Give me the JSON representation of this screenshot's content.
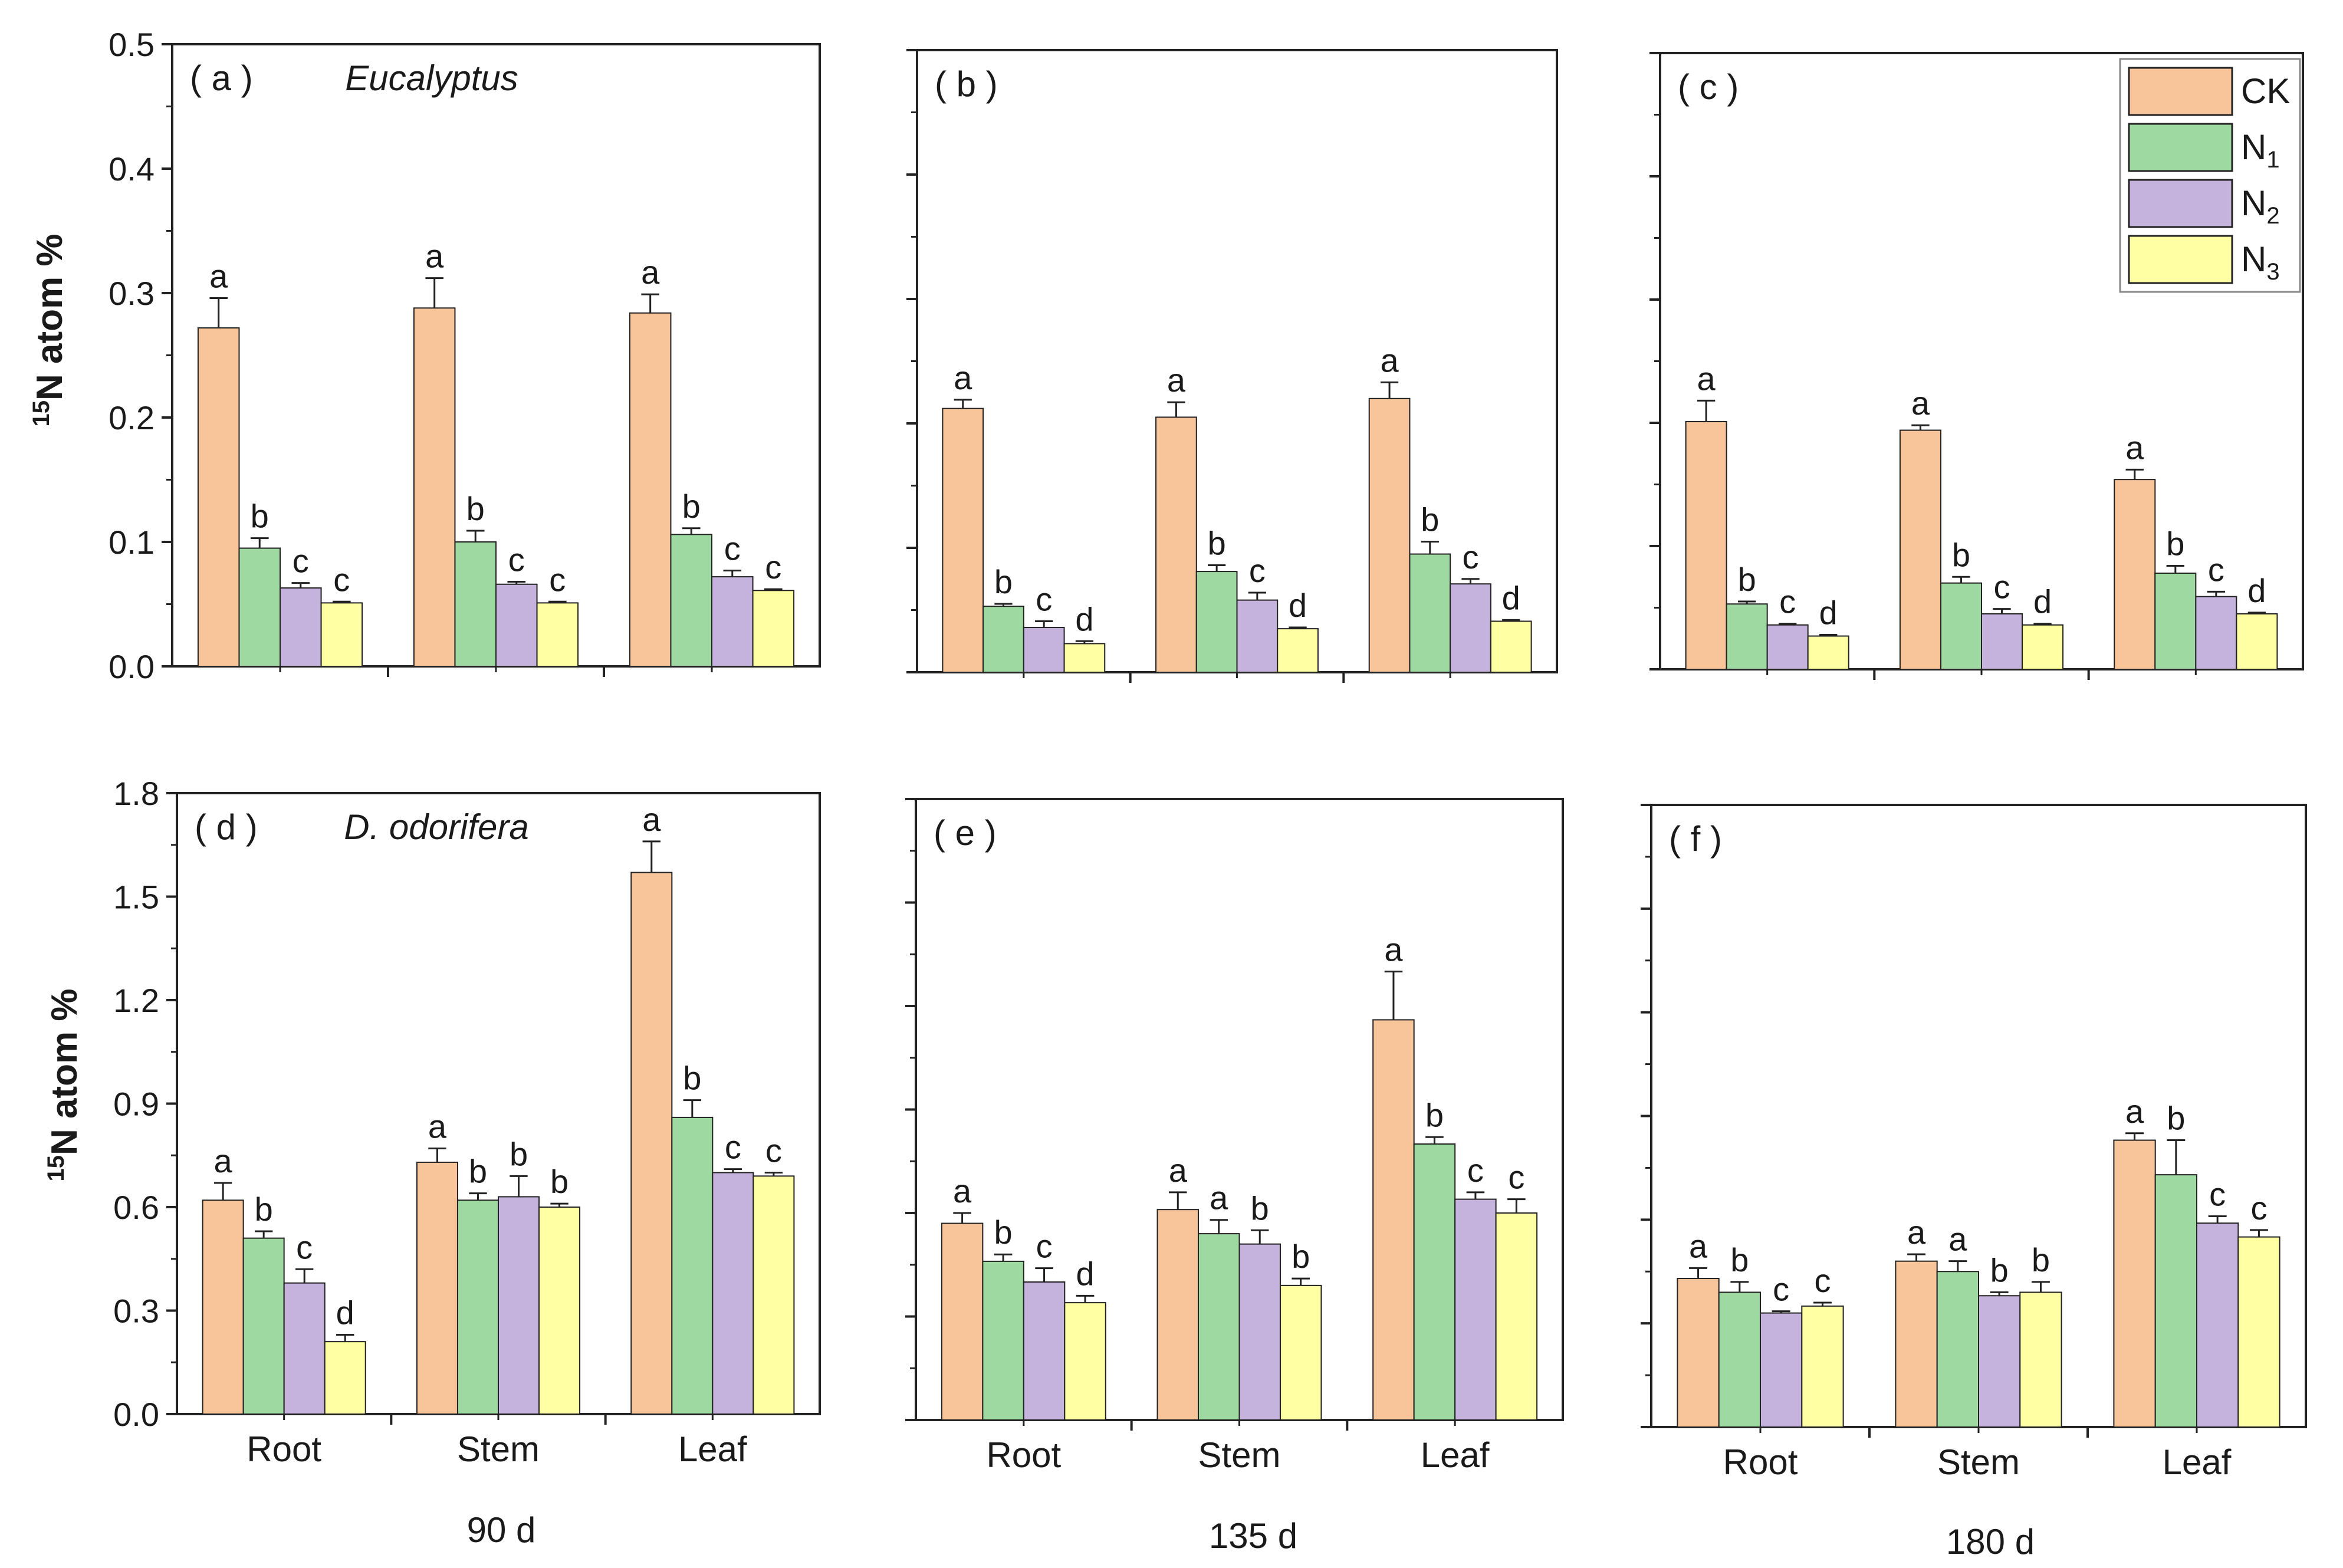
{
  "figure": {
    "ylabel_prefix": "15",
    "ylabel_main": "N atom %",
    "time_labels": [
      "90 d",
      "135 d",
      "180 d"
    ],
    "species": [
      "Eucalyptus",
      "D. odorifera"
    ]
  },
  "colors": {
    "CK": "#f8c49a",
    "N1": "#9dd9a0",
    "N2": "#c6b3dd",
    "N3": "#ffffa3",
    "stroke": "#222222"
  },
  "legend": {
    "items": [
      {
        "base": "CK",
        "sub": "",
        "key": "CK"
      },
      {
        "base": "N",
        "sub": "1",
        "key": "N1"
      },
      {
        "base": "N",
        "sub": "2",
        "key": "N2"
      },
      {
        "base": "N",
        "sub": "3",
        "key": "N3"
      }
    ],
    "placement": "top-right of panel (c)"
  },
  "chart_data": [
    {
      "type": "bar",
      "panel": "(a)",
      "species": "Eucalyptus",
      "time": "90 d",
      "categories": [
        "Root",
        "Stem",
        "Leaf"
      ],
      "ylim": [
        0,
        0.5
      ],
      "yticks": [
        "0.0",
        "0.1",
        "0.2",
        "0.3",
        "0.4",
        "0.5"
      ],
      "show_ytick_labels": true,
      "show_xtick_labels": false,
      "series": [
        {
          "name": "CK",
          "values": [
            0.272,
            0.288,
            0.284
          ],
          "errors": [
            0.024,
            0.024,
            0.015
          ],
          "letters": [
            "a",
            "a",
            "a"
          ]
        },
        {
          "name": "N1",
          "values": [
            0.095,
            0.1,
            0.106
          ],
          "errors": [
            0.008,
            0.009,
            0.005
          ],
          "letters": [
            "b",
            "b",
            "b"
          ]
        },
        {
          "name": "N2",
          "values": [
            0.063,
            0.066,
            0.072
          ],
          "errors": [
            0.004,
            0.002,
            0.005
          ],
          "letters": [
            "c",
            "c",
            "c"
          ]
        },
        {
          "name": "N3",
          "values": [
            0.051,
            0.051,
            0.061
          ],
          "errors": [
            0.001,
            0.001,
            0.001
          ],
          "letters": [
            "c",
            "c",
            "c"
          ]
        }
      ]
    },
    {
      "type": "bar",
      "panel": "(b)",
      "species": "Eucalyptus",
      "time": "135 d",
      "categories": [
        "Root",
        "Stem",
        "Leaf"
      ],
      "ylim": [
        0,
        0.5
      ],
      "yticks": [
        "0.0",
        "0.1",
        "0.2",
        "0.3",
        "0.4",
        "0.5"
      ],
      "show_ytick_labels": false,
      "show_xtick_labels": false,
      "series": [
        {
          "name": "CK",
          "values": [
            0.212,
            0.205,
            0.22
          ],
          "errors": [
            0.007,
            0.012,
            0.013
          ],
          "letters": [
            "a",
            "a",
            "a"
          ]
        },
        {
          "name": "N1",
          "values": [
            0.053,
            0.081,
            0.095
          ],
          "errors": [
            0.002,
            0.005,
            0.01
          ],
          "letters": [
            "b",
            "b",
            "b"
          ]
        },
        {
          "name": "N2",
          "values": [
            0.036,
            0.058,
            0.071
          ],
          "errors": [
            0.005,
            0.006,
            0.004
          ],
          "letters": [
            "c",
            "c",
            "c"
          ]
        },
        {
          "name": "N3",
          "values": [
            0.023,
            0.035,
            0.041
          ],
          "errors": [
            0.002,
            0.001,
            0.001
          ],
          "letters": [
            "d",
            "d",
            "d"
          ]
        }
      ]
    },
    {
      "type": "bar",
      "panel": "(c)",
      "species": "Eucalyptus",
      "time": "180 d",
      "categories": [
        "Root",
        "Stem",
        "Leaf"
      ],
      "ylim": [
        0,
        0.5
      ],
      "yticks": [
        "0.0",
        "0.1",
        "0.2",
        "0.3",
        "0.4",
        "0.5"
      ],
      "show_ytick_labels": false,
      "show_xtick_labels": false,
      "series": [
        {
          "name": "CK",
          "values": [
            0.201,
            0.194,
            0.154
          ],
          "errors": [
            0.017,
            0.004,
            0.008
          ],
          "letters": [
            "a",
            "a",
            "a"
          ]
        },
        {
          "name": "N1",
          "values": [
            0.053,
            0.07,
            0.078
          ],
          "errors": [
            0.002,
            0.005,
            0.006
          ],
          "letters": [
            "b",
            "b",
            "b"
          ]
        },
        {
          "name": "N2",
          "values": [
            0.036,
            0.045,
            0.059
          ],
          "errors": [
            0.001,
            0.004,
            0.004
          ],
          "letters": [
            "c",
            "c",
            "c"
          ]
        },
        {
          "name": "N3",
          "values": [
            0.027,
            0.036,
            0.045
          ],
          "errors": [
            0.001,
            0.001,
            0.001
          ],
          "letters": [
            "d",
            "d",
            "d"
          ]
        }
      ]
    },
    {
      "type": "bar",
      "panel": "(d)",
      "species": "D. odorifera",
      "time": "90 d",
      "categories": [
        "Root",
        "Stem",
        "Leaf"
      ],
      "ylim": [
        0,
        1.8
      ],
      "yticks": [
        "0.0",
        "0.3",
        "0.6",
        "0.9",
        "1.2",
        "1.5",
        "1.8"
      ],
      "show_ytick_labels": true,
      "show_xtick_labels": true,
      "series": [
        {
          "name": "CK",
          "values": [
            0.62,
            0.73,
            1.57
          ],
          "errors": [
            0.05,
            0.04,
            0.09
          ],
          "letters": [
            "a",
            "a",
            "a"
          ]
        },
        {
          "name": "N1",
          "values": [
            0.51,
            0.62,
            0.86
          ],
          "errors": [
            0.02,
            0.02,
            0.05
          ],
          "letters": [
            "b",
            "b",
            "b"
          ]
        },
        {
          "name": "N2",
          "values": [
            0.38,
            0.63,
            0.7
          ],
          "errors": [
            0.04,
            0.06,
            0.01
          ],
          "letters": [
            "c",
            "b",
            "c"
          ]
        },
        {
          "name": "N3",
          "values": [
            0.21,
            0.6,
            0.69
          ],
          "errors": [
            0.02,
            0.01,
            0.01
          ],
          "letters": [
            "d",
            "b",
            "c"
          ]
        }
      ]
    },
    {
      "type": "bar",
      "panel": "(e)",
      "species": "D. odorifera",
      "time": "135 d",
      "categories": [
        "Root",
        "Stem",
        "Leaf"
      ],
      "ylim": [
        0,
        1.8
      ],
      "yticks": [
        "0.0",
        "0.3",
        "0.6",
        "0.9",
        "1.2",
        "1.5",
        "1.8"
      ],
      "show_ytick_labels": false,
      "show_xtick_labels": true,
      "series": [
        {
          "name": "CK",
          "values": [
            0.57,
            0.61,
            1.16
          ],
          "errors": [
            0.03,
            0.05,
            0.14
          ],
          "letters": [
            "a",
            "a",
            "a"
          ]
        },
        {
          "name": "N1",
          "values": [
            0.46,
            0.54,
            0.8
          ],
          "errors": [
            0.02,
            0.04,
            0.02
          ],
          "letters": [
            "b",
            "a",
            "b"
          ]
        },
        {
          "name": "N2",
          "values": [
            0.4,
            0.51,
            0.64
          ],
          "errors": [
            0.04,
            0.04,
            0.02
          ],
          "letters": [
            "c",
            "b",
            "c"
          ]
        },
        {
          "name": "N3",
          "values": [
            0.34,
            0.39,
            0.6
          ],
          "errors": [
            0.02,
            0.02,
            0.04
          ],
          "letters": [
            "d",
            "b",
            "c"
          ]
        }
      ]
    },
    {
      "type": "bar",
      "panel": "(f)",
      "species": "D. odorifera",
      "time": "180 d",
      "categories": [
        "Root",
        "Stem",
        "Leaf"
      ],
      "ylim": [
        0,
        1.8
      ],
      "yticks": [
        "0.0",
        "0.3",
        "0.6",
        "0.9",
        "1.2",
        "1.5",
        "1.8"
      ],
      "show_ytick_labels": false,
      "show_xtick_labels": true,
      "series": [
        {
          "name": "CK",
          "values": [
            0.43,
            0.48,
            0.83
          ],
          "errors": [
            0.03,
            0.02,
            0.02
          ],
          "letters": [
            "a",
            "a",
            "a"
          ]
        },
        {
          "name": "N1",
          "values": [
            0.39,
            0.45,
            0.73
          ],
          "errors": [
            0.03,
            0.03,
            0.1
          ],
          "letters": [
            "b",
            "a",
            "b"
          ]
        },
        {
          "name": "N2",
          "values": [
            0.33,
            0.38,
            0.59
          ],
          "errors": [
            0.005,
            0.01,
            0.02
          ],
          "letters": [
            "c",
            "b",
            "c"
          ]
        },
        {
          "name": "N3",
          "values": [
            0.35,
            0.39,
            0.55
          ],
          "errors": [
            0.01,
            0.03,
            0.02
          ],
          "letters": [
            "c",
            "b",
            "c"
          ]
        }
      ]
    }
  ]
}
